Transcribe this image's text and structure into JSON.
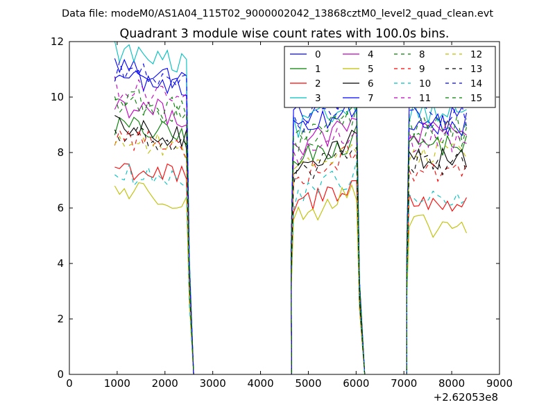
{
  "chart_data": {
    "type": "line",
    "suptitle": "Data file: modeM0/AS1A04_115T02_9000002042_13868cztM0_level2_quad_clean.evt",
    "title": "Quadrant 3 module wise count rates with 100.0s bins.",
    "xlabel": "",
    "ylabel": "",
    "x_offset_label": "+2.62053e8",
    "xlim": [
      0,
      9000
    ],
    "ylim": [
      0,
      12
    ],
    "xticks": [
      0,
      1000,
      2000,
      3000,
      4000,
      5000,
      6000,
      7000,
      8000,
      9000
    ],
    "yticks": [
      0,
      2,
      4,
      6,
      8,
      10,
      12
    ],
    "xtick_labels": [
      "0",
      "1000",
      "2000",
      "3000",
      "4000",
      "5000",
      "6000",
      "7000",
      "8000",
      "9000"
    ],
    "ytick_labels": [
      "0",
      "2",
      "4",
      "6",
      "8",
      "10",
      "12"
    ],
    "grid": false,
    "legend_position": "top-right",
    "legend_columns": 4,
    "time_segments": [
      {
        "x_start": 950,
        "x_end": 2450,
        "n_bins": 16
      },
      {
        "x_start": 4690,
        "x_end": 6010,
        "n_bins": 14
      },
      {
        "x_start": 7110,
        "x_end": 8310,
        "n_bins": 13
      }
    ],
    "gaps": [
      {
        "x_start": 2600,
        "x_end": 4650
      },
      {
        "x_start": 6180,
        "x_end": 7060
      }
    ],
    "series": [
      {
        "name": "0",
        "color": "#0000ff",
        "dash": "solid",
        "levels": [
          11.2,
          9.6,
          9.0
        ]
      },
      {
        "name": "1",
        "color": "#008000",
        "dash": "solid",
        "levels": [
          9.0,
          8.0,
          8.3
        ]
      },
      {
        "name": "2",
        "color": "#ff0000",
        "dash": "solid",
        "levels": [
          7.5,
          6.4,
          6.2
        ]
      },
      {
        "name": "3",
        "color": "#00bfbf",
        "dash": "solid",
        "levels": [
          11.7,
          9.2,
          9.5
        ]
      },
      {
        "name": "4",
        "color": "#bf00bf",
        "dash": "solid",
        "levels": [
          9.8,
          8.5,
          8.7
        ]
      },
      {
        "name": "5",
        "color": "#bfbf00",
        "dash": "solid",
        "levels": [
          6.7,
          6.0,
          5.3
        ]
      },
      {
        "name": "6",
        "color": "#000000",
        "dash": "solid",
        "levels": [
          8.9,
          7.9,
          7.8
        ]
      },
      {
        "name": "7",
        "color": "#0000ff",
        "dash": "solid",
        "levels": [
          10.8,
          9.2,
          9.2
        ]
      },
      {
        "name": "8",
        "color": "#008000",
        "dash": "dashed",
        "levels": [
          9.8,
          8.8,
          8.6
        ]
      },
      {
        "name": "9",
        "color": "#ff0000",
        "dash": "dashed",
        "levels": [
          8.6,
          7.5,
          7.4
        ]
      },
      {
        "name": "10",
        "color": "#00bfbf",
        "dash": "dashed",
        "levels": [
          7.2,
          6.7,
          6.3
        ]
      },
      {
        "name": "11",
        "color": "#bf00bf",
        "dash": "dashed",
        "levels": [
          10.4,
          8.2,
          8.4
        ]
      },
      {
        "name": "12",
        "color": "#bfbf00",
        "dash": "dashed",
        "levels": [
          8.5,
          7.8,
          8.0
        ]
      },
      {
        "name": "13",
        "color": "#000000",
        "dash": "dashed",
        "levels": [
          8.7,
          7.5,
          7.6
        ]
      },
      {
        "name": "14",
        "color": "#0000ff",
        "dash": "dashed",
        "levels": [
          11.0,
          9.4,
          9.4
        ]
      },
      {
        "name": "15",
        "color": "#008000",
        "dash": "dashed",
        "levels": [
          10.0,
          8.9,
          8.9
        ]
      }
    ]
  }
}
